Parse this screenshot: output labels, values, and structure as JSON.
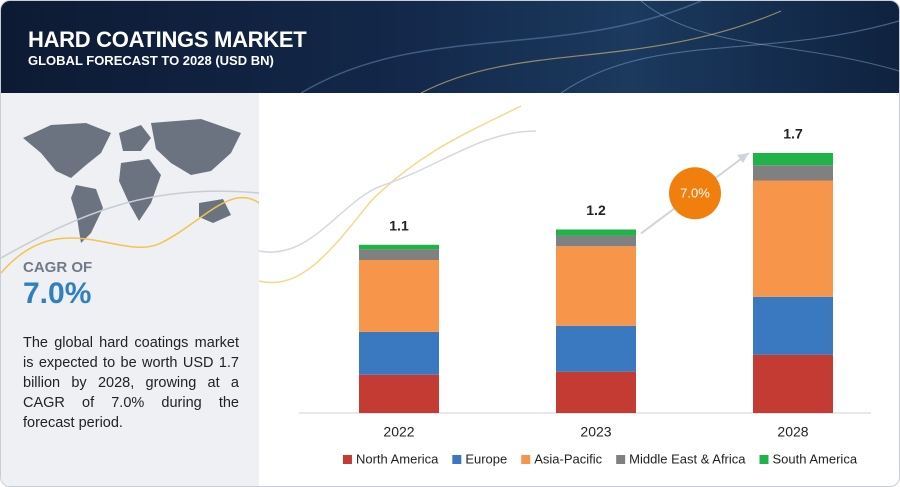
{
  "header": {
    "title": "HARD COATINGS MARKET",
    "subtitle": "GLOBAL FORECAST TO 2028 (USD BN)"
  },
  "sidebar": {
    "cagr_label": "CAGR OF",
    "cagr_value": "7.0%",
    "description": "The global hard coatings market is expected to be worth USD 1.7 billion by 2028, growing at a CAGR of 7.0% during the forecast period."
  },
  "chart_data": {
    "type": "stacked_bar",
    "categories": [
      "2022",
      "2023",
      "2028"
    ],
    "series": [
      {
        "name": "North America",
        "color": "#c33b32",
        "values": [
          0.25,
          0.27,
          0.38
        ]
      },
      {
        "name": "Europe",
        "color": "#3a78bf",
        "values": [
          0.28,
          0.3,
          0.38
        ]
      },
      {
        "name": "Asia-Pacific",
        "color": "#f7964a",
        "values": [
          0.47,
          0.52,
          0.76
        ]
      },
      {
        "name": "Middle East & Africa",
        "color": "#808080",
        "values": [
          0.07,
          0.07,
          0.1
        ]
      },
      {
        "name": "South America",
        "color": "#20b34a",
        "values": [
          0.03,
          0.04,
          0.08
        ]
      }
    ],
    "totals": [
      1.1,
      1.2,
      1.7
    ],
    "annotation": "7.0%",
    "legend": "bottom"
  }
}
